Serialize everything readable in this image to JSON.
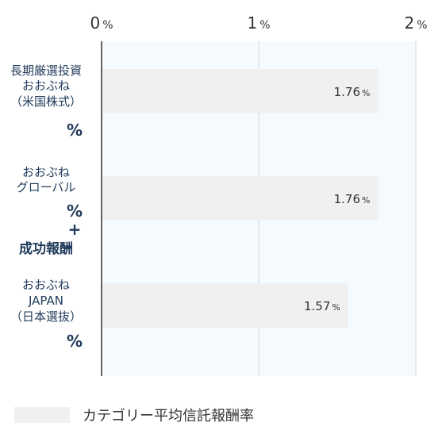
{
  "chart_data": {
    "type": "bar",
    "orientation": "horizontal",
    "categories": [
      [
        "長期厳選投資",
        "おおぶね",
        "（米国株式）"
      ],
      [
        "おおぶね",
        "グローバル"
      ],
      [
        "おおぶね",
        "JAPAN",
        "（日本選抜）"
      ]
    ],
    "category_suffix": [
      "%",
      "%\n+",
      "%"
    ],
    "category_extra": [
      "",
      "成功報酬",
      ""
    ],
    "series": [
      {
        "name": "カテゴリー平均信託報酬率",
        "values": [
          1.76,
          1.76,
          1.57
        ]
      }
    ],
    "data_labels": [
      "1.76",
      "1.76",
      "1.57"
    ],
    "data_label_unit": "%",
    "xlim": [
      0,
      2
    ],
    "x_ticks": [
      {
        "value": 0,
        "label": "0",
        "unit": "%"
      },
      {
        "value": 1,
        "label": "1",
        "unit": "%"
      },
      {
        "value": 2,
        "label": "2",
        "unit": "%"
      }
    ],
    "grid": true,
    "legend_position": "bottom-left",
    "colors": {
      "bar": "#f0f0f0",
      "plot_bg": "#f4fafd",
      "grid": "#dde4ea",
      "axis": "#333333",
      "text": "#1f3a5a"
    }
  }
}
